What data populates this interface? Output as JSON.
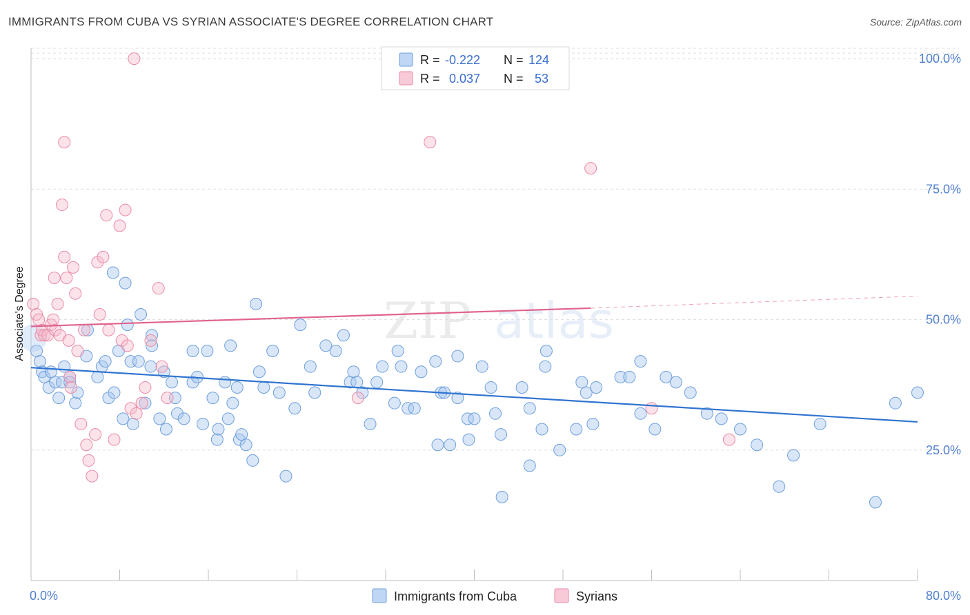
{
  "title": "IMMIGRANTS FROM CUBA VS SYRIAN ASSOCIATE'S DEGREE CORRELATION CHART",
  "source": "Source: ZipAtlas.com",
  "watermark": "ZIPatlas",
  "colors": {
    "cuba_fill": "#a9c8f0",
    "cuba_stroke": "#6f9fdc",
    "cuba_line": "#2f74d0",
    "syria_fill": "#f5b8c9",
    "syria_stroke": "#e98aa8",
    "syria_line": "#e0638d",
    "tick_label": "#4f7fcf"
  },
  "legend": {
    "rows": [
      {
        "r_label": "R =",
        "r_value": "-0.222",
        "n_label": "N =",
        "n_value": "124"
      },
      {
        "r_label": "R =",
        "r_value": "0.037",
        "n_label": "N =",
        "n_value": "53"
      }
    ]
  },
  "chart_data": {
    "type": "scatter",
    "title": "IMMIGRANTS FROM CUBA VS SYRIAN ASSOCIATE'S DEGREE CORRELATION CHART",
    "xlabel": "",
    "ylabel": "Associate's Degree",
    "xlim": [
      0,
      80
    ],
    "ylim": [
      0,
      102
    ],
    "x_tick_labels": [
      "0.0%",
      "80.0%"
    ],
    "y_tick_labels": [
      "25.0%",
      "50.0%",
      "75.0%",
      "100.0%"
    ],
    "y_ticks": [
      25,
      50,
      75,
      100
    ],
    "grid": "horizontal dashed",
    "legend_position": "top-center",
    "series": [
      {
        "name": "Immigrants from Cuba",
        "r": -0.222,
        "n": 124,
        "trend": {
          "x": [
            0,
            80
          ],
          "y": [
            40.8,
            30.4
          ]
        },
        "points": [
          [
            0.5,
            44
          ],
          [
            0.8,
            42
          ],
          [
            1,
            40
          ],
          [
            1.2,
            39
          ],
          [
            1.6,
            37
          ],
          [
            1.8,
            40
          ],
          [
            2.2,
            38
          ],
          [
            2.5,
            35
          ],
          [
            2.8,
            38
          ],
          [
            3,
            41
          ],
          [
            3.5,
            39
          ],
          [
            3.5,
            38
          ],
          [
            4,
            34
          ],
          [
            4.2,
            36
          ],
          [
            5,
            43
          ],
          [
            5.1,
            48
          ],
          [
            6,
            39
          ],
          [
            6.4,
            41
          ],
          [
            6.7,
            42
          ],
          [
            7,
            35
          ],
          [
            7.4,
            59
          ],
          [
            7.5,
            36
          ],
          [
            7.9,
            44
          ],
          [
            8.3,
            31
          ],
          [
            8.5,
            57
          ],
          [
            8.7,
            49
          ],
          [
            9,
            42
          ],
          [
            9.2,
            30
          ],
          [
            9.7,
            42
          ],
          [
            9.9,
            51
          ],
          [
            10.3,
            34
          ],
          [
            10.8,
            41
          ],
          [
            10.9,
            47
          ],
          [
            10.9,
            45
          ],
          [
            11.6,
            31
          ],
          [
            12,
            40
          ],
          [
            12.2,
            29
          ],
          [
            12.7,
            38
          ],
          [
            13,
            35
          ],
          [
            13.2,
            32
          ],
          [
            13.8,
            31
          ],
          [
            14.6,
            44
          ],
          [
            14.6,
            38
          ],
          [
            15,
            39
          ],
          [
            15.5,
            30
          ],
          [
            15.9,
            44
          ],
          [
            16.4,
            35
          ],
          [
            16.8,
            27
          ],
          [
            16.9,
            29
          ],
          [
            17.5,
            38
          ],
          [
            17.8,
            31
          ],
          [
            18,
            45
          ],
          [
            18.2,
            34
          ],
          [
            18.6,
            37
          ],
          [
            18.8,
            27
          ],
          [
            19,
            28
          ],
          [
            19.4,
            26
          ],
          [
            20,
            23
          ],
          [
            20.3,
            53
          ],
          [
            20.6,
            40
          ],
          [
            21,
            37
          ],
          [
            21.8,
            44
          ],
          [
            22.4,
            36
          ],
          [
            23,
            20
          ],
          [
            23.8,
            33
          ],
          [
            24.3,
            49
          ],
          [
            25.2,
            41
          ],
          [
            25.6,
            36
          ],
          [
            26.6,
            45
          ],
          [
            27.5,
            44
          ],
          [
            28.2,
            47
          ],
          [
            28.8,
            38
          ],
          [
            29.1,
            40
          ],
          [
            29.4,
            38
          ],
          [
            29.9,
            36
          ],
          [
            30.6,
            30
          ],
          [
            31.2,
            38
          ],
          [
            31.7,
            41
          ],
          [
            32.8,
            34
          ],
          [
            33.1,
            44
          ],
          [
            33.4,
            41
          ],
          [
            34,
            33
          ],
          [
            34.6,
            33
          ],
          [
            35.2,
            40
          ],
          [
            36.5,
            42
          ],
          [
            36.7,
            26
          ],
          [
            37,
            36
          ],
          [
            37.3,
            36
          ],
          [
            37.8,
            26
          ],
          [
            38.5,
            35
          ],
          [
            38.5,
            43
          ],
          [
            39.4,
            31
          ],
          [
            39.5,
            27
          ],
          [
            40,
            31
          ],
          [
            40.7,
            41
          ],
          [
            41.5,
            37
          ],
          [
            41.9,
            32
          ],
          [
            42.4,
            28
          ],
          [
            42.5,
            16
          ],
          [
            44.3,
            37
          ],
          [
            45,
            22
          ],
          [
            45,
            33
          ],
          [
            46.1,
            29
          ],
          [
            46.4,
            41
          ],
          [
            46.5,
            44
          ],
          [
            47.7,
            25
          ],
          [
            49.2,
            29
          ],
          [
            49.7,
            38
          ],
          [
            50.1,
            36
          ],
          [
            50.7,
            30
          ],
          [
            51,
            37
          ],
          [
            53.2,
            39
          ],
          [
            54,
            39
          ],
          [
            55,
            32
          ],
          [
            55,
            42
          ],
          [
            56.3,
            29
          ],
          [
            57.3,
            39
          ],
          [
            58.2,
            38
          ],
          [
            59.5,
            36
          ],
          [
            61,
            32
          ],
          [
            62.3,
            31
          ],
          [
            64,
            29
          ],
          [
            65.5,
            26
          ],
          [
            67.5,
            18
          ],
          [
            68.8,
            24
          ],
          [
            71.2,
            30
          ],
          [
            76.2,
            15
          ],
          [
            78,
            34
          ],
          [
            80,
            36
          ]
        ]
      },
      {
        "name": "Syrians",
        "r": 0.037,
        "n": 53,
        "trend": {
          "x": [
            0,
            50.5
          ],
          "y": [
            48.7,
            52.2
          ]
        },
        "trend_extension": {
          "x": [
            50.5,
            80
          ],
          "y": [
            52.2,
            54.5
          ]
        },
        "points": [
          [
            0.2,
            53
          ],
          [
            0.5,
            51
          ],
          [
            0.7,
            50
          ],
          [
            0.9,
            47
          ],
          [
            1,
            48
          ],
          [
            1.2,
            47
          ],
          [
            1.5,
            47
          ],
          [
            1.8,
            49
          ],
          [
            2,
            50
          ],
          [
            2.1,
            58
          ],
          [
            2.2,
            48
          ],
          [
            2.4,
            53
          ],
          [
            2.6,
            47
          ],
          [
            2.8,
            72
          ],
          [
            3,
            84
          ],
          [
            3,
            62
          ],
          [
            3.2,
            58
          ],
          [
            3.4,
            46
          ],
          [
            3.5,
            39
          ],
          [
            3.6,
            37
          ],
          [
            3.8,
            60
          ],
          [
            4,
            55
          ],
          [
            4.2,
            44
          ],
          [
            4.5,
            30
          ],
          [
            4.8,
            48
          ],
          [
            5,
            26
          ],
          [
            5.2,
            23
          ],
          [
            5.5,
            20
          ],
          [
            5.8,
            28
          ],
          [
            6,
            61
          ],
          [
            6.2,
            51
          ],
          [
            6.5,
            62
          ],
          [
            6.8,
            70
          ],
          [
            7,
            48
          ],
          [
            7.5,
            27
          ],
          [
            8,
            68
          ],
          [
            8.2,
            46
          ],
          [
            8.5,
            71
          ],
          [
            8.7,
            45
          ],
          [
            9,
            33
          ],
          [
            9.3,
            100
          ],
          [
            9.5,
            32
          ],
          [
            10,
            34
          ],
          [
            10.3,
            37
          ],
          [
            10.8,
            46
          ],
          [
            11.5,
            56
          ],
          [
            11.8,
            41
          ],
          [
            12.3,
            35
          ],
          [
            29.5,
            35
          ],
          [
            36,
            84
          ],
          [
            50.5,
            79
          ],
          [
            56,
            33
          ],
          [
            63,
            27
          ]
        ]
      }
    ]
  },
  "bottom_legend": {
    "items": [
      {
        "label": "Immigrants from Cuba"
      },
      {
        "label": "Syrians"
      }
    ]
  }
}
